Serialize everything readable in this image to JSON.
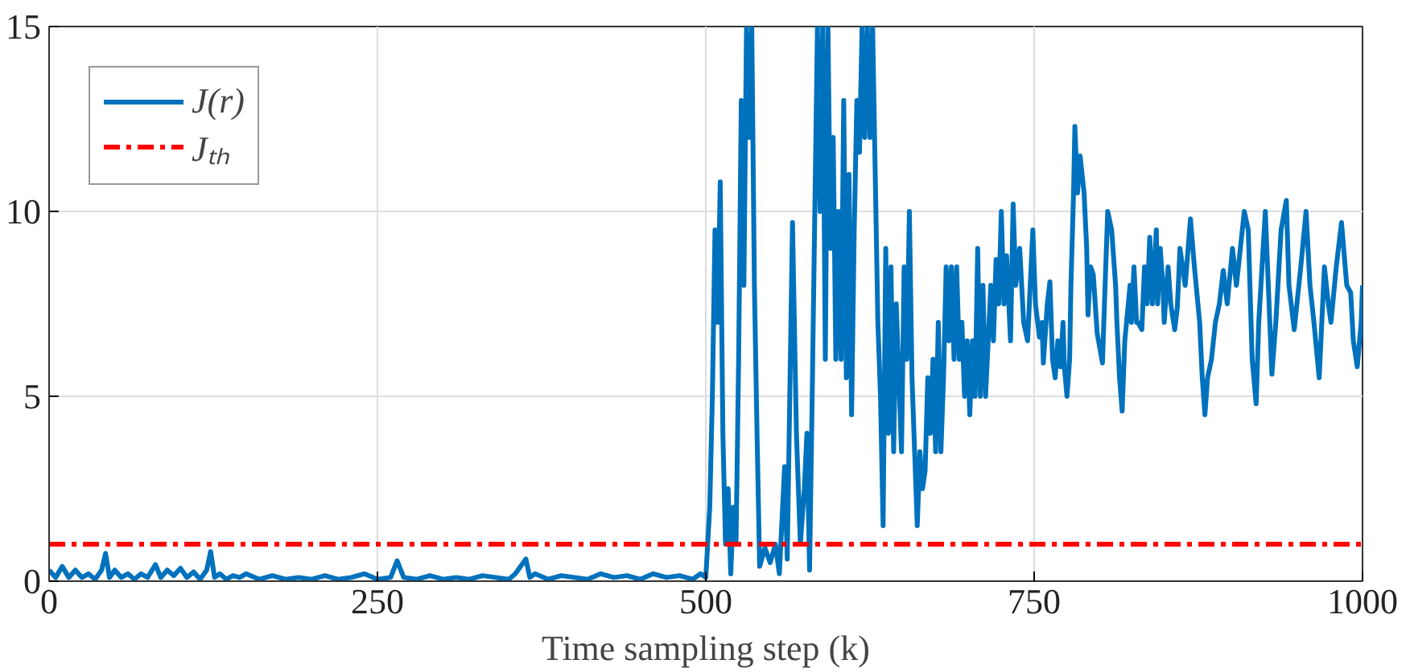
{
  "chart_data": {
    "type": "line",
    "xlabel": "Time sampling step (k)",
    "xlim": [
      0,
      1000
    ],
    "ylim": [
      0,
      15
    ],
    "xticks": [
      0,
      250,
      500,
      750,
      1000
    ],
    "yticks": [
      0,
      5,
      10,
      15
    ],
    "grid": true,
    "legend": "top left",
    "series": [
      {
        "name": "J(r)",
        "color": "#0072bd",
        "line_style": "solid",
        "x": [
          0,
          5,
          10,
          15,
          20,
          25,
          30,
          35,
          40,
          43,
          46,
          50,
          55,
          60,
          65,
          70,
          75,
          81,
          85,
          90,
          95,
          100,
          105,
          110,
          115,
          120,
          123,
          126,
          130,
          135,
          140,
          145,
          150,
          160,
          170,
          180,
          190,
          200,
          210,
          220,
          230,
          240,
          250,
          260,
          265,
          270,
          280,
          290,
          300,
          310,
          320,
          330,
          340,
          350,
          355,
          363,
          366,
          370,
          380,
          390,
          400,
          410,
          420,
          430,
          440,
          450,
          460,
          470,
          480,
          490,
          496,
          500,
          503,
          505,
          507,
          509,
          511,
          513,
          515,
          517,
          519,
          521,
          523,
          525,
          527,
          529,
          531,
          533,
          535,
          537,
          539,
          541,
          545,
          549,
          553,
          556,
          560,
          562,
          566,
          569,
          572,
          575,
          577,
          579,
          581,
          583,
          585,
          587,
          589,
          591,
          593,
          595,
          597,
          599,
          601,
          603,
          605,
          607,
          609,
          611,
          613,
          615,
          617,
          619,
          621,
          623,
          625,
          627,
          629,
          631,
          633,
          635,
          637,
          639,
          641,
          643,
          645,
          647,
          649,
          651,
          653,
          655,
          657,
          659,
          661,
          663,
          665,
          667,
          669,
          671,
          673,
          675,
          677,
          679,
          681,
          683,
          685,
          687,
          689,
          691,
          693,
          695,
          697,
          699,
          701,
          703,
          705,
          707,
          709,
          711,
          713,
          715,
          717,
          719,
          721,
          723,
          725,
          727,
          729,
          732,
          734,
          736,
          739,
          742,
          745,
          749,
          751,
          754,
          756,
          757,
          760,
          762,
          764,
          766,
          768,
          770,
          772,
          773,
          775,
          777,
          778,
          780,
          781,
          783,
          785,
          788,
          790,
          791,
          793,
          795,
          798,
          802,
          804,
          806,
          809,
          812,
          813,
          815,
          817,
          819,
          823,
          824,
          826,
          828,
          829,
          832,
          834,
          836,
          838,
          840,
          843,
          844,
          846,
          848,
          849,
          852,
          854,
          857,
          859,
          861,
          865,
          869,
          872,
          876,
          878,
          880,
          882,
          885,
          888,
          891,
          894,
          897,
          901,
          904,
          907,
          910,
          913,
          916,
          919,
          921,
          926,
          931,
          934,
          938,
          942,
          944,
          948,
          953,
          957,
          960,
          963,
          967,
          971,
          974,
          976,
          980,
          984,
          988,
          991,
          993,
          996,
          999,
          1000
        ],
        "values": [
          0.3,
          0.1,
          0.4,
          0.1,
          0.3,
          0.1,
          0.2,
          0.05,
          0.3,
          0.75,
          0.1,
          0.3,
          0.1,
          0.2,
          0.05,
          0.2,
          0.1,
          0.45,
          0.1,
          0.3,
          0.15,
          0.35,
          0.1,
          0.25,
          0.05,
          0.3,
          0.8,
          0.1,
          0.2,
          0.05,
          0.15,
          0.1,
          0.2,
          0.05,
          0.15,
          0.05,
          0.1,
          0.05,
          0.15,
          0.05,
          0.1,
          0.2,
          0.05,
          0.1,
          0.55,
          0.1,
          0.05,
          0.15,
          0.05,
          0.1,
          0.05,
          0.15,
          0.1,
          0.05,
          0.2,
          0.6,
          0.1,
          0.2,
          0.05,
          0.15,
          0.1,
          0.05,
          0.2,
          0.1,
          0.15,
          0.05,
          0.2,
          0.1,
          0.15,
          0.05,
          0.2,
          0.1,
          2,
          5,
          9.5,
          7,
          10.8,
          4,
          1,
          2.5,
          0.2,
          2,
          1,
          6,
          13,
          8,
          15,
          12,
          15,
          8,
          4,
          0.4,
          0.9,
          0.5,
          1,
          0.2,
          3.1,
          0.6,
          9.7,
          4,
          1,
          2.5,
          4,
          0.3,
          5,
          10,
          15,
          10,
          15,
          6,
          15,
          9,
          12,
          6,
          10,
          6,
          13,
          5.5,
          11,
          4.5,
          9.5,
          13,
          11.6,
          15,
          12,
          15,
          12,
          15,
          11,
          7,
          5,
          1.5,
          9,
          4,
          8.5,
          3.5,
          7.5,
          5.5,
          3.5,
          8.5,
          6,
          10,
          5.5,
          3.5,
          1.5,
          3.5,
          2.5,
          3,
          5.5,
          4,
          6,
          3.5,
          7,
          3.5,
          5.5,
          8.5,
          6.5,
          8.5,
          6,
          8.5,
          6,
          7,
          5,
          6.5,
          4.5,
          6.5,
          5,
          9,
          5,
          8,
          5,
          6.5,
          8,
          6.5,
          8.7,
          7.5,
          10,
          7.5,
          8.8,
          6.5,
          10.2,
          8,
          9,
          7,
          6.5,
          9.5,
          7.5,
          6.6,
          7,
          5.9,
          7.5,
          8.1,
          6,
          5.5,
          6.5,
          5.8,
          7,
          5.8,
          5,
          6,
          8,
          10.5,
          12.3,
          10.5,
          11.5,
          10.5,
          9,
          7.2,
          8.5,
          8.3,
          6.7,
          5.9,
          8,
          10,
          9.5,
          8,
          7,
          5.5,
          4.6,
          6.5,
          8,
          7,
          8.5,
          7,
          7,
          6.8,
          8.5,
          7.5,
          9.3,
          7.5,
          9.5,
          7.5,
          9,
          8,
          7,
          8.5,
          7.5,
          6.8,
          7.4,
          9,
          8,
          9.8,
          8.5,
          7,
          5.5,
          4.5,
          5.5,
          6,
          7,
          7.5,
          8.4,
          7.5,
          9,
          8,
          9,
          10,
          9.5,
          6,
          4.8,
          7,
          10,
          5.6,
          7,
          9.5,
          10.3,
          8,
          6.8,
          8.5,
          10,
          8,
          7,
          5.5,
          8.5,
          7.5,
          7,
          8.5,
          9.7,
          8,
          7.8,
          6.5,
          5.8,
          7,
          8
        ]
      },
      {
        "name": "Jₜₕ",
        "color": "#ff0000",
        "line_style": "dashdot",
        "x": [
          0,
          1000
        ],
        "values": [
          1,
          1
        ]
      }
    ]
  }
}
